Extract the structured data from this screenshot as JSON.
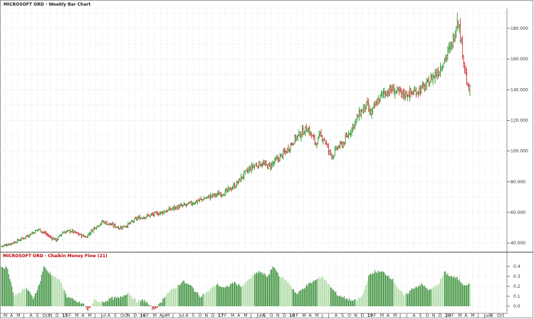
{
  "price_panel": {
    "title": "MICROSOFT ORD - Weekly Bar Chart"
  },
  "indicator_panel": {
    "title": "MICROSOFT ORD - Chaikin Money Flow (21)"
  },
  "colors": {
    "up": "#2e9a2e",
    "down": "#d03030",
    "cmf": "#2e8a2e",
    "cmf_light": "#a8d8a0",
    "indicator_title": "#c00000",
    "grid": "#d0d0d0"
  },
  "x_axis_labels": [
    "M",
    "A",
    "M",
    "J",
    "A",
    "S",
    "Oct",
    "N",
    "D",
    "15",
    "F",
    "M",
    "A",
    "M",
    "J",
    "Jul",
    "A",
    "S",
    "Oct",
    "N",
    "D",
    "16",
    "F",
    "M",
    "Apr",
    "M",
    "J",
    "Jul",
    "A",
    "S",
    "O",
    "N",
    "D",
    "17",
    "F",
    "M",
    "A",
    "M",
    "J",
    "JulA",
    "S",
    "O",
    "N",
    "D",
    "18",
    "F",
    "M",
    "A",
    "M",
    "J",
    "J",
    "A",
    "S",
    "O",
    "N",
    "D",
    "19",
    "F",
    "M",
    "A",
    "M",
    "J",
    "J",
    "A",
    "S",
    "O",
    "N",
    "D",
    "20",
    "F",
    "M",
    "A",
    "M",
    "J",
    "JulA",
    "S",
    "Oct"
  ],
  "chart_data": [
    {
      "type": "bar",
      "title": "MICROSOFT ORD - Weekly Bar Chart",
      "description_type": "OHLC weekly bars",
      "ylim": [
        35,
        192
      ],
      "y_ticks": [
        "40.000",
        "60.000",
        "80.000",
        "100.000",
        "120.000",
        "140.000",
        "160.000",
        "180.000"
      ],
      "y_tick_values": [
        40,
        60,
        80,
        100,
        120,
        140,
        160,
        180
      ],
      "grid": true,
      "anchors": [
        [
          0,
          38
        ],
        [
          10,
          40
        ],
        [
          20,
          43
        ],
        [
          30,
          47
        ],
        [
          35,
          49
        ],
        [
          40,
          47
        ],
        [
          46,
          44
        ],
        [
          52,
          42
        ],
        [
          58,
          47
        ],
        [
          66,
          48
        ],
        [
          72,
          46
        ],
        [
          80,
          44
        ],
        [
          88,
          50
        ],
        [
          96,
          54
        ],
        [
          104,
          52
        ],
        [
          112,
          50
        ],
        [
          120,
          52
        ],
        [
          128,
          56
        ],
        [
          140,
          58
        ],
        [
          152,
          60
        ],
        [
          164,
          63
        ],
        [
          176,
          65
        ],
        [
          188,
          68
        ],
        [
          200,
          71
        ],
        [
          212,
          73
        ],
        [
          222,
          78
        ],
        [
          230,
          85
        ],
        [
          238,
          90
        ],
        [
          246,
          92
        ],
        [
          254,
          90
        ],
        [
          262,
          95
        ],
        [
          270,
          100
        ],
        [
          278,
          108
        ],
        [
          286,
          113
        ],
        [
          290,
          115
        ],
        [
          294,
          110
        ],
        [
          298,
          105
        ],
        [
          302,
          110
        ],
        [
          306,
          108
        ],
        [
          310,
          100
        ],
        [
          314,
          97
        ],
        [
          318,
          102
        ],
        [
          324,
          105
        ],
        [
          332,
          115
        ],
        [
          340,
          125
        ],
        [
          346,
          130
        ],
        [
          350,
          124
        ],
        [
          356,
          132
        ],
        [
          362,
          138
        ],
        [
          370,
          140
        ],
        [
          380,
          137
        ],
        [
          390,
          138
        ],
        [
          396,
          140
        ],
        [
          402,
          142
        ],
        [
          408,
          148
        ],
        [
          414,
          152
        ],
        [
          420,
          160
        ],
        [
          426,
          168
        ],
        [
          430,
          178
        ],
        [
          432,
          188
        ],
        [
          434,
          180
        ],
        [
          436,
          170
        ],
        [
          438,
          160
        ],
        [
          440,
          150
        ],
        [
          442,
          140
        ]
      ]
    },
    {
      "type": "bar",
      "title": "MICROSOFT ORD - Chaikin Money Flow (21)",
      "ylim": [
        -0.05,
        0.45
      ],
      "y_ticks": [
        "0.0",
        "0.1",
        "0.2",
        "0.3",
        "0.4"
      ],
      "y_tick_values": [
        0,
        0.1,
        0.2,
        0.3,
        0.4
      ],
      "anchors": [
        [
          0,
          0.4
        ],
        [
          6,
          0.38
        ],
        [
          12,
          0.1
        ],
        [
          18,
          0.15
        ],
        [
          24,
          0.18
        ],
        [
          30,
          0.08
        ],
        [
          36,
          0.22
        ],
        [
          40,
          0.4
        ],
        [
          44,
          0.35
        ],
        [
          50,
          0.3
        ],
        [
          56,
          0.25
        ],
        [
          62,
          0.1
        ],
        [
          70,
          0.05
        ],
        [
          78,
          0.02
        ],
        [
          82,
          -0.05
        ],
        [
          88,
          0.06
        ],
        [
          96,
          0.04
        ],
        [
          104,
          0.08
        ],
        [
          112,
          0.08
        ],
        [
          120,
          0.14
        ],
        [
          128,
          0.05
        ],
        [
          136,
          0.06
        ],
        [
          144,
          -0.04
        ],
        [
          150,
          0.02
        ],
        [
          156,
          0.12
        ],
        [
          164,
          0.18
        ],
        [
          172,
          0.25
        ],
        [
          180,
          0.2
        ],
        [
          188,
          0.1
        ],
        [
          196,
          0.15
        ],
        [
          204,
          0.22
        ],
        [
          212,
          0.18
        ],
        [
          220,
          0.24
        ],
        [
          228,
          0.2
        ],
        [
          236,
          0.28
        ],
        [
          244,
          0.35
        ],
        [
          252,
          0.3
        ],
        [
          258,
          0.4
        ],
        [
          264,
          0.3
        ],
        [
          272,
          0.24
        ],
        [
          280,
          0.12
        ],
        [
          288,
          0.2
        ],
        [
          296,
          0.25
        ],
        [
          304,
          0.3
        ],
        [
          312,
          0.2
        ],
        [
          320,
          0.1
        ],
        [
          326,
          0.08
        ],
        [
          334,
          0.05
        ],
        [
          342,
          0.1
        ],
        [
          348,
          0.3
        ],
        [
          354,
          0.35
        ],
        [
          362,
          0.34
        ],
        [
          370,
          0.28
        ],
        [
          376,
          0.18
        ],
        [
          382,
          0.1
        ],
        [
          390,
          0.18
        ],
        [
          398,
          0.22
        ],
        [
          406,
          0.16
        ],
        [
          414,
          0.22
        ],
        [
          420,
          0.34
        ],
        [
          426,
          0.3
        ],
        [
          432,
          0.28
        ],
        [
          438,
          0.22
        ]
      ]
    }
  ]
}
